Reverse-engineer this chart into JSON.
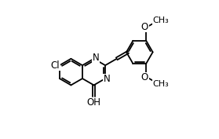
{
  "background": "#ffffff",
  "line_color": "#000000",
  "line_width": 1.3,
  "font_size": 8.5,
  "figsize": [
    2.79,
    1.77
  ],
  "dpi": 100,
  "bl": 0.095,
  "quinazoline": {
    "c4a": [
      0.305,
      0.44
    ],
    "c8a": [
      0.305,
      0.565
    ]
  },
  "labels": {
    "Cl": "Cl",
    "N_top": "N",
    "N_bot": "N",
    "OH": "OH",
    "OMe_top": "O",
    "OMe_bot": "O"
  }
}
